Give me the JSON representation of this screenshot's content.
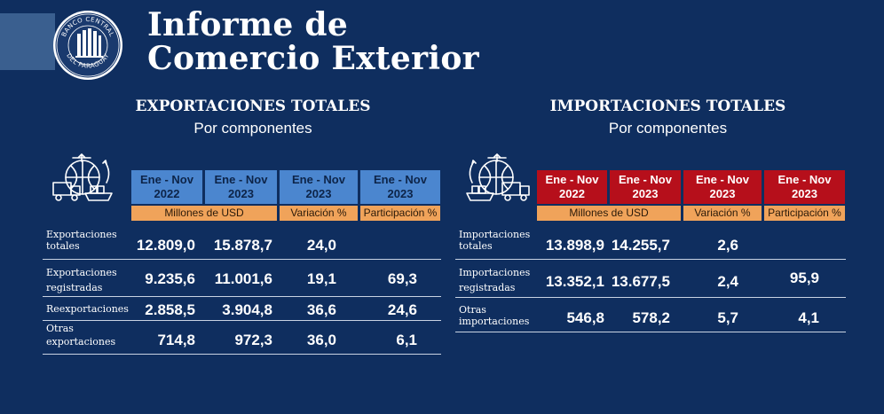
{
  "header": {
    "logo_text_top": "BANCO CENTRAL",
    "logo_text_bottom": "DEL PARAGUAY",
    "title_line1": "Informe de",
    "title_line2": "Comercio Exterior"
  },
  "exports": {
    "title": "EXPORTACIONES TOTALES",
    "subtitle": "Por componentes",
    "columns": [
      {
        "line1": "Ene - Nov",
        "line2": "2022"
      },
      {
        "line1": "Ene - Nov",
        "line2": "2023"
      },
      {
        "line1": "Ene - Nov",
        "line2": "2023"
      },
      {
        "line1": "Ene - Nov",
        "line2": "2023"
      }
    ],
    "units": [
      "Millones de USD",
      "Variación %",
      "Participación %"
    ],
    "rows": [
      {
        "label_line1": "Exportaciones",
        "label_line2": "totales",
        "v2022": "12.809,0",
        "v2023": "15.878,7",
        "var": "24,0",
        "part": ""
      },
      {
        "label_line1": "Exportaciones",
        "label_line2": "registradas",
        "v2022": "9.235,6",
        "v2023": "11.001,6",
        "var": "19,1",
        "part": "69,3"
      },
      {
        "label_line1": "Reexportaciones",
        "label_line2": "",
        "v2022": "2.858,5",
        "v2023": "3.904,8",
        "var": "36,6",
        "part": "24,6"
      },
      {
        "label_line1": "Otras",
        "label_line2": "exportaciones",
        "v2022": "714,8",
        "v2023": "972,3",
        "var": "36,0",
        "part": "6,1"
      }
    ]
  },
  "imports": {
    "title": "IMPORTACIONES TOTALES",
    "subtitle": "Por componentes",
    "columns": [
      {
        "line1": "Ene - Nov",
        "line2": "2022"
      },
      {
        "line1": "Ene - Nov",
        "line2": "2023"
      },
      {
        "line1": "Ene - Nov",
        "line2": "2023"
      },
      {
        "line1": "Ene - Nov",
        "line2": "2023"
      }
    ],
    "units": [
      "Millones de USD",
      "Variación %",
      "Participación %"
    ],
    "rows": [
      {
        "label_line1": "Importaciones",
        "label_line2": "totales",
        "v2022": "13.898,9",
        "v2023": "14.255,7",
        "var": "2,6",
        "part": ""
      },
      {
        "label_line1": "Importaciones",
        "label_line2": "registradas",
        "v2022": "13.352,1",
        "v2023": "13.677,5",
        "var": "2,4",
        "part": "95,9"
      },
      {
        "label_line1": "Otras",
        "label_line2": "importaciones",
        "v2022": "546,8",
        "v2023": "578,2",
        "var": "5,7",
        "part": "4,1"
      }
    ]
  },
  "colors": {
    "background": "#0f2e5f",
    "export_header": "#4b86cf",
    "import_header": "#b60f1b",
    "unit_bar": "#f0a35a"
  }
}
